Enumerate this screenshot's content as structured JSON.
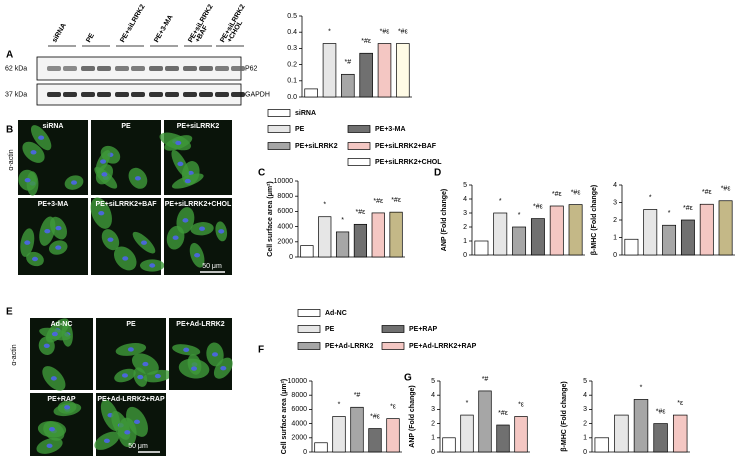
{
  "panel_letters": [
    "A",
    "B",
    "C",
    "D",
    "E",
    "F",
    "G"
  ],
  "blot": {
    "lanes": [
      [
        "siRNA"
      ],
      [
        "PE"
      ],
      [
        "PE+siLRRK2"
      ],
      [
        "PE+3-MA"
      ],
      [
        "PE+siLRRK2",
        "+BAF"
      ],
      [
        "PE+siLRRK2",
        "+CHOL"
      ]
    ],
    "markers": [
      "62 kDa",
      "37 kDa"
    ],
    "proteins": [
      "P62",
      "GAPDH"
    ]
  },
  "images_b": {
    "stain": "α-actin",
    "labels": [
      "siRNA",
      "PE",
      "PE+siLRRK2",
      "PE+3-MA",
      "PE+siLRRK2+BAF",
      "PE+siLRRK2+CHOL"
    ],
    "scale_bar": "50 μm"
  },
  "images_e": {
    "stain": "α-actin",
    "labels": [
      "Ad-NC",
      "PE",
      "PE+Ad-LRRK2",
      "PE+RAP",
      "PE+Ad-LRRK2+RAP"
    ],
    "scale_bar": "50 μm"
  },
  "legend_1": [
    {
      "name": "siRNA",
      "color": "#ffffff"
    },
    {
      "name": "PE",
      "color": "#e6e6e6"
    },
    {
      "name": "PE+siLRRK2",
      "color": "#a6a6a6"
    },
    {
      "name": "PE+3-MA",
      "color": "#707070"
    },
    {
      "name": "PE+siLRRK2+BAF",
      "color": "#f4c7c3"
    },
    {
      "name": "PE+siLRRK2+CHOL",
      "color": "#ffffff"
    }
  ],
  "legend_2": [
    {
      "name": "Ad-NC",
      "color": "#ffffff"
    },
    {
      "name": "PE",
      "color": "#e6e6e6"
    },
    {
      "name": "PE+Ad-LRRK2",
      "color": "#a6a6a6"
    },
    {
      "name": "PE+RAP",
      "color": "#707070"
    },
    {
      "name": "PE+Ad-LRRK2+RAP",
      "color": "#f4c7c3"
    }
  ],
  "chart_data": [
    {
      "type": "bar",
      "ylim": [
        0,
        0.5
      ],
      "yticks": [
        {
          "value": 0,
          "label": "0.0"
        },
        0.1,
        0.2,
        0.3,
        0.4,
        0.5
      ],
      "values": [
        0.05,
        0.33,
        0.14,
        0.27,
        0.33,
        0.33
      ],
      "annotations": [
        null,
        "*",
        "*#",
        "*#ε",
        "*#ε",
        "*#ε"
      ],
      "colors": [
        "#ffffff",
        "#e6e6e6",
        "#a6a6a6",
        "#707070",
        "#f4c7c3",
        "#fffbe6"
      ]
    },
    {
      "type": "bar",
      "ylabel": "Cell surface area (μm²)",
      "ylim": [
        0,
        10000
      ],
      "yticks": [
        0,
        2000,
        4000,
        6000,
        8000,
        10000
      ],
      "values": [
        1500,
        5300,
        3300,
        4300,
        5800,
        5900
      ],
      "annotations": [
        null,
        "*",
        "*",
        "*#ε",
        "*#ε",
        "*#ε"
      ],
      "colors": [
        "#ffffff",
        "#e6e6e6",
        "#a6a6a6",
        "#707070",
        "#f4c7c3",
        "#c4b887"
      ]
    },
    {
      "type": "bar",
      "ylabel": "ANP (Fold change)",
      "ylim": [
        0,
        5
      ],
      "yticks": [
        0,
        1,
        2,
        3,
        4,
        5
      ],
      "values": [
        1,
        3.0,
        2.0,
        2.6,
        3.5,
        3.6
      ],
      "annotations": [
        null,
        "*",
        "*",
        "*#ε",
        "*#ε",
        "*#ε"
      ],
      "colors": [
        "#ffffff",
        "#e6e6e6",
        "#a6a6a6",
        "#707070",
        "#f4c7c3",
        "#c4b887"
      ]
    },
    {
      "type": "bar",
      "ylabel": "β-MHC (Fold change)",
      "ylim": [
        0,
        4
      ],
      "yticks": [
        0,
        1,
        2,
        3,
        4
      ],
      "values": [
        0.9,
        2.6,
        1.7,
        2.0,
        2.9,
        3.1
      ],
      "annotations": [
        null,
        "*",
        "*",
        "*#ε",
        "*#ε",
        "*#ε"
      ],
      "colors": [
        "#ffffff",
        "#e6e6e6",
        "#a6a6a6",
        "#707070",
        "#f4c7c3",
        "#c4b887"
      ]
    },
    {
      "type": "bar",
      "ylabel": "Cell surface area (μm²)",
      "ylim": [
        0,
        10000
      ],
      "yticks": [
        0,
        2000,
        4000,
        6000,
        8000,
        10000
      ],
      "values": [
        1300,
        5000,
        6300,
        3300,
        4700
      ],
      "annotations": [
        null,
        "*",
        "*#",
        "*#ε",
        "*ε"
      ],
      "colors": [
        "#ffffff",
        "#e6e6e6",
        "#a6a6a6",
        "#707070",
        "#f4c7c3"
      ]
    },
    {
      "type": "bar",
      "ylabel": "ANP (Fold change)",
      "ylim": [
        0,
        5
      ],
      "yticks": [
        0,
        1,
        2,
        3,
        4,
        5
      ],
      "values": [
        1,
        2.6,
        4.3,
        1.9,
        2.5
      ],
      "annotations": [
        null,
        "*",
        "*#",
        "*#ε",
        "*ε"
      ],
      "colors": [
        "#ffffff",
        "#e6e6e6",
        "#a6a6a6",
        "#707070",
        "#f4c7c3"
      ]
    },
    {
      "type": "bar",
      "ylabel": "β-MHC (Fold change)",
      "ylim": [
        0,
        5
      ],
      "yticks": [
        0,
        1,
        2,
        3,
        4,
        5
      ],
      "values": [
        1,
        2.6,
        3.7,
        2.0,
        2.6
      ],
      "annotations": [
        null,
        null,
        "*",
        "*#ε",
        "*ε"
      ],
      "colors": [
        "#ffffff",
        "#e6e6e6",
        "#a6a6a6",
        "#707070",
        "#f4c7c3"
      ]
    }
  ]
}
